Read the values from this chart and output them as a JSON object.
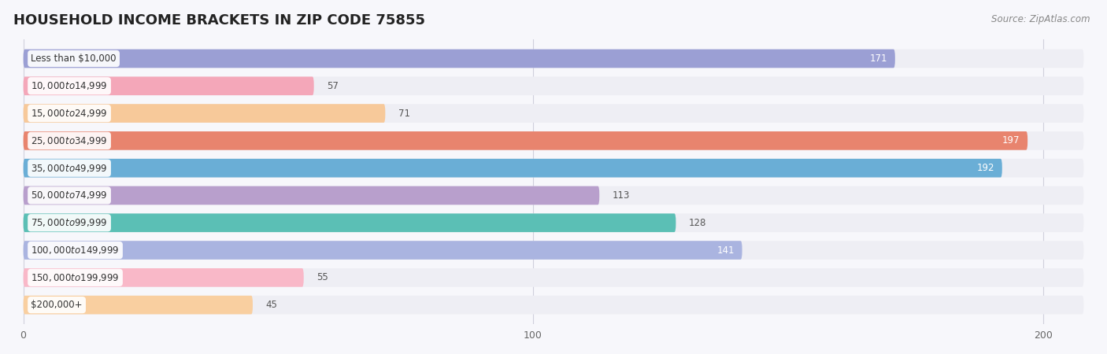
{
  "title": "HOUSEHOLD INCOME BRACKETS IN ZIP CODE 75855",
  "source": "Source: ZipAtlas.com",
  "categories": [
    "Less than $10,000",
    "$10,000 to $14,999",
    "$15,000 to $24,999",
    "$25,000 to $34,999",
    "$35,000 to $49,999",
    "$50,000 to $74,999",
    "$75,000 to $99,999",
    "$100,000 to $149,999",
    "$150,000 to $199,999",
    "$200,000+"
  ],
  "values": [
    171,
    57,
    71,
    197,
    192,
    113,
    128,
    141,
    55,
    45
  ],
  "bar_colors": [
    "#9b9fd4",
    "#f4a7b9",
    "#f7c99a",
    "#e8846e",
    "#6aaed6",
    "#b89fcc",
    "#5bbfb5",
    "#aab4e0",
    "#f9b8c8",
    "#f9cfa0"
  ],
  "value_inside_color": "white",
  "value_outside_color": "#555555",
  "value_threshold_inside": 140,
  "xlim_min": -2,
  "xlim_max": 210,
  "ylim_min": -0.7,
  "ylim_max": 9.7,
  "bar_height": 0.68,
  "bar_gap_color": "#e8e8f0",
  "bg_bar_color": "#eeeef4",
  "title_fontsize": 13,
  "source_fontsize": 8.5,
  "cat_label_fontsize": 8.5,
  "value_fontsize": 8.5,
  "tick_fontsize": 9,
  "background_color": "#f7f7fb",
  "grid_color": "#d0d0dc",
  "xticks": [
    0,
    100,
    200
  ]
}
